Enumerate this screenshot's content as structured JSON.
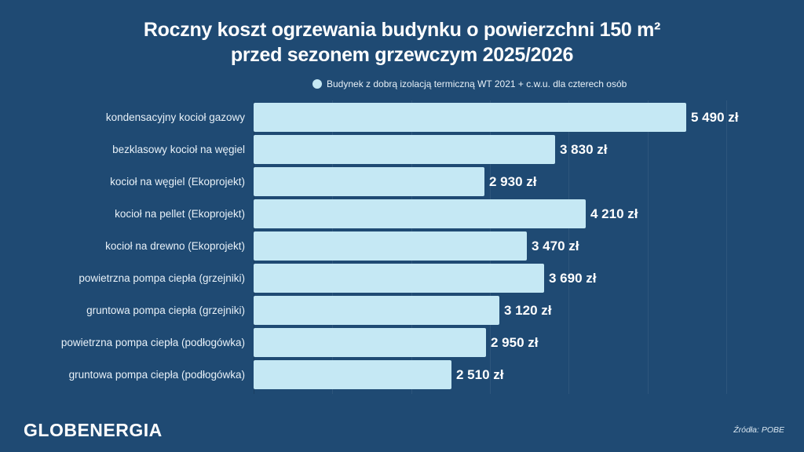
{
  "title_line1": "Roczny koszt ogrzewania budynku o powierzchni 150 m²",
  "title_line2": "przed sezonem grzewczym 2025/2026",
  "legend": {
    "label": "Budynek z dobrą izolacją termiczną WT 2021 + c.w.u. dla czterech osób",
    "color": "#c5e8f4"
  },
  "logo": "GLOBENERGIA",
  "source": "Źródła: POBE",
  "colors": {
    "background": "#1f4a73",
    "bar": "#c5e8f4",
    "text": "#ffffff"
  },
  "chart_data": {
    "type": "bar",
    "orientation": "horizontal",
    "title": "Roczny koszt ogrzewania budynku o powierzchni 150 m² przed sezonem grzewczym 2025/2026",
    "xlabel": "",
    "ylabel": "",
    "unit": "zł",
    "grid": true,
    "grid_step": 1000,
    "xlim": [
      0,
      6800
    ],
    "legend_position": "top",
    "categories": [
      "kondensacyjny kocioł gazowy",
      "bezklasowy kocioł na węgiel",
      "kocioł na węgiel (Ekoprojekt)",
      "kocioł na pellet (Ekoprojekt)",
      "kocioł na drewno (Ekoprojekt)",
      "powietrzna pompa ciepła (grzejniki)",
      "gruntowa pompa ciepła (grzejniki)",
      "powietrzna pompa ciepła (podłogówka)",
      "gruntowa pompa ciepła (podłogówka)"
    ],
    "series": [
      {
        "name": "Budynek z dobrą izolacją termiczną WT 2021 + c.w.u. dla czterech osób",
        "values": [
          5490,
          3830,
          2930,
          4210,
          3470,
          3690,
          3120,
          2950,
          2510
        ],
        "labels": [
          "5 490 zł",
          "3 830 zł",
          "2 930 zł",
          "4 210 zł",
          "3 470 zł",
          "3 690 zł",
          "3 120 zł",
          "2 950 zł",
          "2 510 zł"
        ]
      }
    ]
  }
}
